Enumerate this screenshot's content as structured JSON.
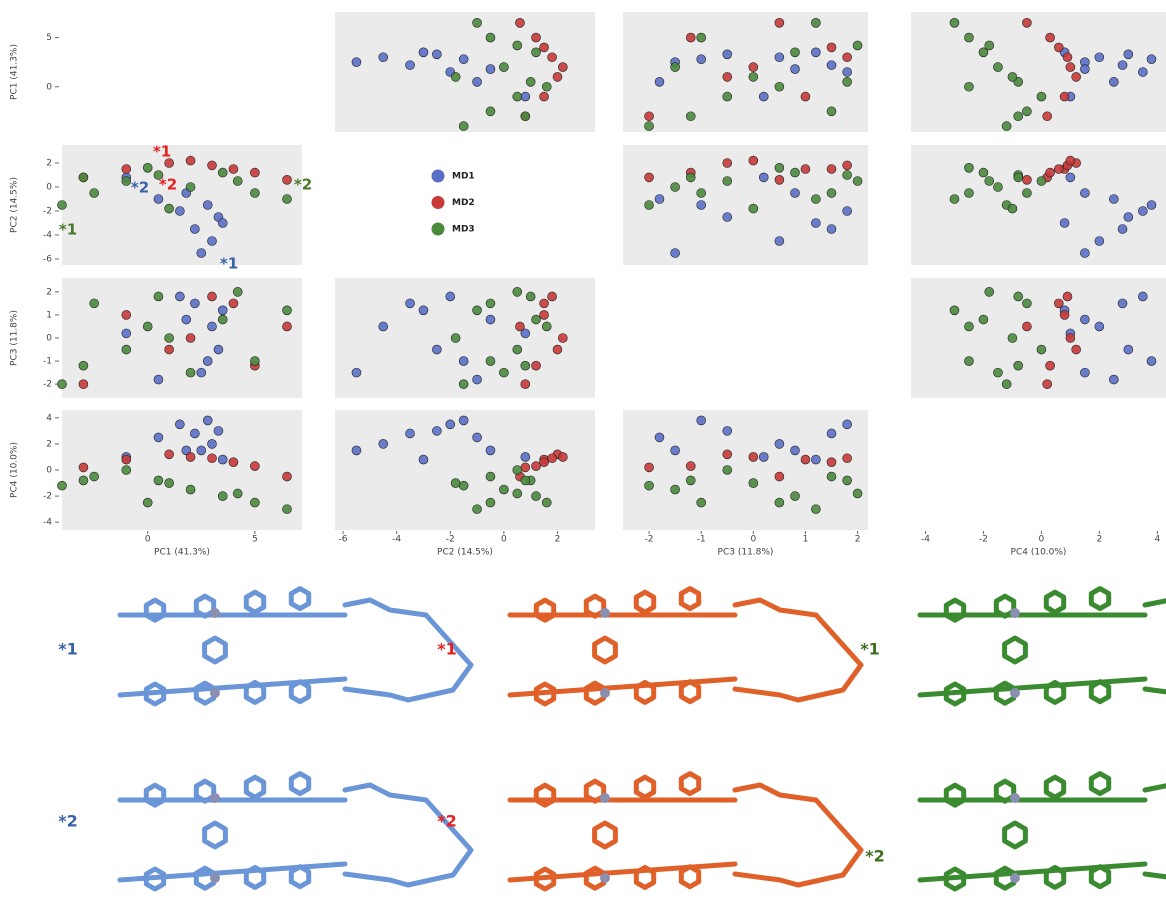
{
  "chart_data": {
    "type": "scatter",
    "axes": [
      {
        "label": "PC1 (41.3%)",
        "xlim": [
          -4,
          7.2
        ],
        "xticks": [
          0,
          5
        ],
        "ylim": [
          -4.6,
          7.6
        ],
        "yticks": [
          0,
          5
        ]
      },
      {
        "label": "PC2 (14.5%)",
        "xlim": [
          -6.3,
          3.4
        ],
        "xticks": [
          -6,
          -4,
          -2,
          0,
          2
        ],
        "ylim": [
          -6.5,
          3.5
        ],
        "yticks": [
          -6,
          -4,
          -2,
          0,
          2
        ]
      },
      {
        "label": "PC3 (11.8%)",
        "xlim": [
          -2.5,
          2.2
        ],
        "xticks": [
          -2,
          -1,
          0,
          1,
          2
        ],
        "ylim": [
          -2.6,
          2.6
        ],
        "yticks": [
          -2,
          -1,
          0,
          1,
          2
        ]
      },
      {
        "label": "PC4 (10.0%)",
        "xlim": [
          -4.5,
          4.3
        ],
        "xticks": [
          -4,
          -2,
          0,
          2,
          4
        ],
        "ylim": [
          -4.6,
          4.6
        ],
        "yticks": [
          -4,
          -2,
          0,
          2,
          4
        ]
      }
    ],
    "series": [
      {
        "name": "MD1",
        "color": "#5b6fc8",
        "values": [
          [
            2.5,
            3.0,
            2.2,
            3.3,
            1.5,
            0.5,
            -1.0,
            2.8,
            1.8,
            3.5
          ],
          [
            -5.5,
            -4.5,
            -3.5,
            -2.5,
            -2.0,
            -1.0,
            0.8,
            -1.5,
            -0.5,
            -3.0
          ],
          [
            -1.5,
            0.5,
            1.5,
            -0.5,
            1.8,
            -1.8,
            0.2,
            -1.0,
            0.8,
            1.2
          ],
          [
            1.5,
            2.0,
            2.8,
            3.0,
            3.5,
            2.5,
            1.0,
            3.8,
            1.5,
            0.8
          ]
        ]
      },
      {
        "name": "MD2",
        "color": "#c83a3a",
        "values": [
          [
            -3,
            -1,
            1,
            3,
            5,
            6.5,
            2,
            4
          ],
          [
            0.8,
            1.5,
            2.0,
            1.8,
            1.2,
            0.6,
            2.2,
            1.5
          ],
          [
            -2.0,
            1.0,
            -0.5,
            1.8,
            -1.2,
            0.5,
            0.0,
            1.5
          ],
          [
            0.2,
            0.8,
            1.2,
            0.9,
            0.3,
            -0.5,
            1.0,
            0.6
          ]
        ]
      },
      {
        "name": "MD3",
        "color": "#4a8a3c",
        "values": [
          [
            -4,
            -2.5,
            -1,
            0.5,
            2,
            3.5,
            5,
            6.5,
            1,
            4.2,
            -3,
            0
          ],
          [
            -1.5,
            -0.5,
            0.5,
            1.0,
            0,
            1.2,
            -0.5,
            -1.0,
            -1.8,
            0.5,
            0.8,
            1.6
          ],
          [
            -2,
            1.5,
            -0.5,
            1.8,
            -1.5,
            0.8,
            -1,
            1.2,
            0,
            2,
            -1.2,
            0.5
          ],
          [
            -1.2,
            -0.5,
            0,
            -0.8,
            -1.5,
            -2,
            -2.5,
            -3,
            -1,
            -1.8,
            -0.8,
            -2.5
          ]
        ]
      }
    ],
    "annotations": [
      {
        "text": "*1",
        "color": "#e82020"
      },
      {
        "text": "*2",
        "color": "#e82020"
      },
      {
        "text": "*2",
        "color": "#3a62a8"
      },
      {
        "text": "*1",
        "color": "#3a62a8"
      },
      {
        "text": "*1",
        "color": "#4a7a2a"
      },
      {
        "text": "*2",
        "color": "#4a7a2a"
      }
    ],
    "structures": [
      {
        "color": "#6a96d8",
        "label_color": "#3a62a8",
        "labels": [
          "*1",
          "*2"
        ]
      },
      {
        "color": "#e0602a",
        "label_color": "#e82020",
        "labels": [
          "*1",
          "*2"
        ]
      },
      {
        "color": "#3a8a30",
        "label_color": "#3f6f1f",
        "labels": [
          "*1",
          "*2"
        ]
      }
    ]
  }
}
